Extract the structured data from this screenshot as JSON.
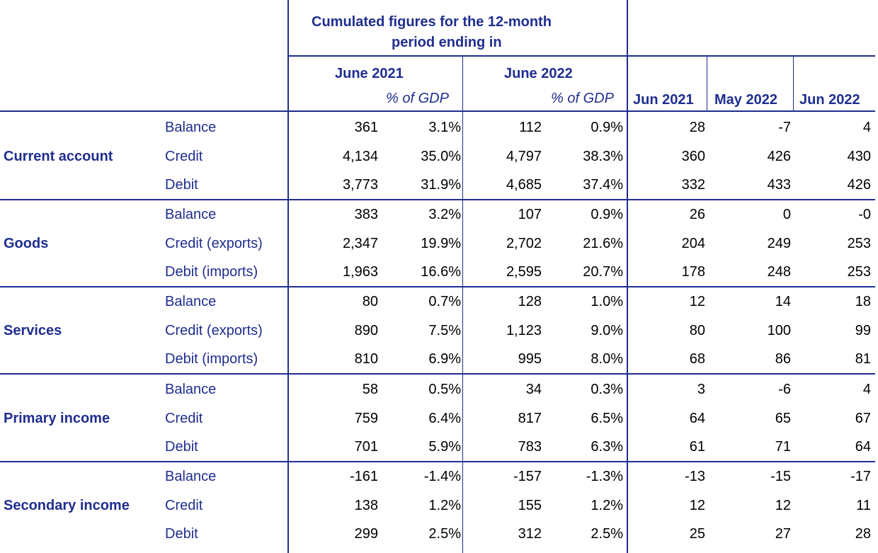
{
  "header": {
    "cumulated_title": "Cumulated figures for the 12-month",
    "cumulated_title2": "period ending in",
    "june2021": "June 2021",
    "june2022": "June 2022",
    "pct_gdp": "% of GDP",
    "months": [
      "Jun 2021",
      "May 2022",
      "Jun 2022"
    ]
  },
  "groups": [
    {
      "name": "Current account",
      "rows": [
        {
          "label": "Balance",
          "v": [
            "361",
            "3.1%",
            "112",
            "0.9%",
            "28",
            "-7",
            "4"
          ]
        },
        {
          "label": "Credit",
          "v": [
            "4,134",
            "35.0%",
            "4,797",
            "38.3%",
            "360",
            "426",
            "430"
          ]
        },
        {
          "label": "Debit",
          "v": [
            "3,773",
            "31.9%",
            "4,685",
            "37.4%",
            "332",
            "433",
            "426"
          ]
        }
      ]
    },
    {
      "name": "Goods",
      "rows": [
        {
          "label": "Balance",
          "v": [
            "383",
            "3.2%",
            "107",
            "0.9%",
            "26",
            "0",
            "-0"
          ]
        },
        {
          "label": "Credit (exports)",
          "v": [
            "2,347",
            "19.9%",
            "2,702",
            "21.6%",
            "204",
            "249",
            "253"
          ]
        },
        {
          "label": "Debit (imports)",
          "v": [
            "1,963",
            "16.6%",
            "2,595",
            "20.7%",
            "178",
            "248",
            "253"
          ]
        }
      ]
    },
    {
      "name": "Services",
      "rows": [
        {
          "label": "Balance",
          "v": [
            "80",
            "0.7%",
            "128",
            "1.0%",
            "12",
            "14",
            "18"
          ]
        },
        {
          "label": "Credit (exports)",
          "v": [
            "890",
            "7.5%",
            "1,123",
            "9.0%",
            "80",
            "100",
            "99"
          ]
        },
        {
          "label": "Debit (imports)",
          "v": [
            "810",
            "6.9%",
            "995",
            "8.0%",
            "68",
            "86",
            "81"
          ]
        }
      ]
    },
    {
      "name": "Primary income",
      "rows": [
        {
          "label": "Balance",
          "v": [
            "58",
            "0.5%",
            "34",
            "0.3%",
            "3",
            "-6",
            "4"
          ]
        },
        {
          "label": "Credit",
          "v": [
            "759",
            "6.4%",
            "817",
            "6.5%",
            "64",
            "65",
            "67"
          ]
        },
        {
          "label": "Debit",
          "v": [
            "701",
            "5.9%",
            "783",
            "6.3%",
            "61",
            "71",
            "64"
          ]
        }
      ]
    },
    {
      "name": "Secondary income",
      "rows": [
        {
          "label": "Balance",
          "v": [
            "-161",
            "-1.4%",
            "-157",
            "-1.3%",
            "-13",
            "-15",
            "-17"
          ]
        },
        {
          "label": "Credit",
          "v": [
            "138",
            "1.2%",
            "155",
            "1.2%",
            "12",
            "12",
            "11"
          ]
        },
        {
          "label": "Debit",
          "v": [
            "299",
            "2.5%",
            "312",
            "2.5%",
            "25",
            "27",
            "28"
          ]
        }
      ]
    }
  ]
}
